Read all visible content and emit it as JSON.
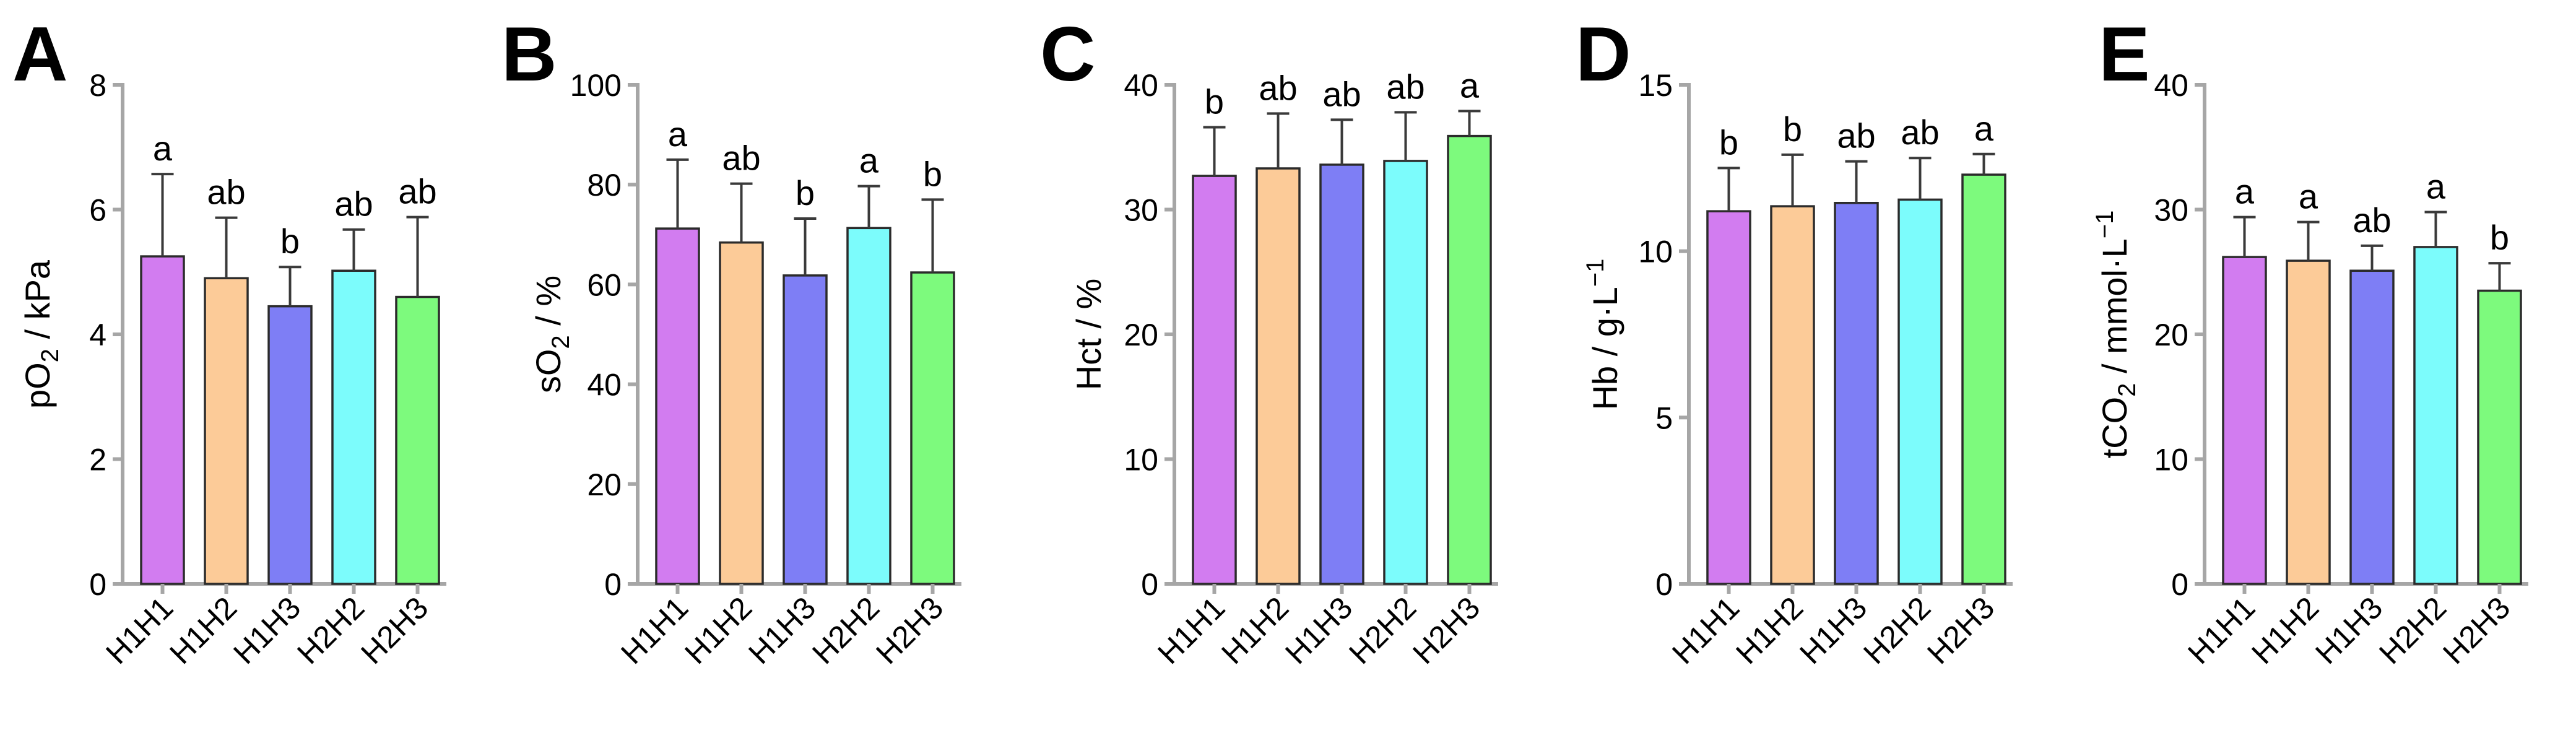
{
  "chart_data": [
    {
      "type": "bar",
      "panel": "A",
      "ylabel": "pO",
      "ylabel_sub": "2",
      "ylabel_tail": " / kPa",
      "ylim": [
        0,
        8
      ],
      "yticks": [
        0,
        2,
        4,
        6,
        8
      ],
      "ytick_labels": [
        "0",
        "2",
        "4",
        "6",
        "8"
      ],
      "categories": [
        "H1H1",
        "H1H2",
        "H1H3",
        "H2H2",
        "H2H3"
      ],
      "values": [
        5.25,
        4.9,
        4.45,
        5.02,
        4.6
      ],
      "errors": [
        1.32,
        0.97,
        0.63,
        0.66,
        1.28
      ],
      "letters": [
        "a",
        "ab",
        "b",
        "ab",
        "ab"
      ],
      "colors": [
        "#d27cf0",
        "#fccb98",
        "#7e7ef5",
        "#7cfcfc",
        "#7dfa7d"
      ]
    },
    {
      "type": "bar",
      "panel": "B",
      "ylabel": "sO",
      "ylabel_sub": "2",
      "ylabel_tail": " / %",
      "ylim": [
        0,
        100
      ],
      "yticks": [
        0,
        20,
        40,
        60,
        80,
        100
      ],
      "ytick_labels": [
        "0",
        "20",
        "40",
        "60",
        "80",
        "100"
      ],
      "categories": [
        "H1H1",
        "H1H2",
        "H1H3",
        "H2H2",
        "H2H3"
      ],
      "values": [
        71.2,
        68.4,
        61.8,
        71.3,
        62.4
      ],
      "errors": [
        13.8,
        11.8,
        11.4,
        8.4,
        14.6
      ],
      "letters": [
        "a",
        "ab",
        "b",
        "a",
        "b"
      ],
      "colors": [
        "#d27cf0",
        "#fccb98",
        "#7e7ef5",
        "#7cfcfc",
        "#7dfa7d"
      ]
    },
    {
      "type": "bar",
      "panel": "C",
      "ylabel": "Hct / %",
      "ylabel_sub": "",
      "ylabel_tail": "",
      "ylim": [
        0,
        40
      ],
      "yticks": [
        0,
        10,
        20,
        30,
        40
      ],
      "ytick_labels": [
        "0",
        "10",
        "20",
        "30",
        "40"
      ],
      "categories": [
        "H1H1",
        "H1H2",
        "H1H3",
        "H2H2",
        "H2H3"
      ],
      "values": [
        32.7,
        33.3,
        33.6,
        33.9,
        35.9
      ],
      "errors": [
        3.9,
        4.4,
        3.6,
        3.9,
        2.0
      ],
      "letters": [
        "b",
        "ab",
        "ab",
        "ab",
        "a"
      ],
      "colors": [
        "#d27cf0",
        "#fccb98",
        "#7e7ef5",
        "#7cfcfc",
        "#7dfa7d"
      ]
    },
    {
      "type": "bar",
      "panel": "D",
      "ylabel": "Hb / g·L",
      "ylabel_sub": "",
      "ylabel_tail": "",
      "ylabel_sup": "−1",
      "ylim": [
        0,
        15
      ],
      "yticks": [
        0,
        5,
        10,
        15
      ],
      "ytick_labels": [
        "0",
        "5",
        "10",
        "15"
      ],
      "categories": [
        "H1H1",
        "H1H2",
        "H1H3",
        "H2H2",
        "H2H3"
      ],
      "values": [
        11.2,
        11.35,
        11.45,
        11.55,
        12.3
      ],
      "errors": [
        1.3,
        1.55,
        1.25,
        1.25,
        0.62
      ],
      "letters": [
        "b",
        "b",
        "ab",
        "ab",
        "a"
      ],
      "colors": [
        "#d27cf0",
        "#fccb98",
        "#7e7ef5",
        "#7cfcfc",
        "#7dfa7d"
      ]
    },
    {
      "type": "bar",
      "panel": "E",
      "ylabel": "tCO",
      "ylabel_sub": "2",
      "ylabel_tail": " / mmol·L",
      "ylabel_sup": "−1",
      "ylim": [
        0,
        40
      ],
      "yticks": [
        0,
        10,
        20,
        30,
        40
      ],
      "ytick_labels": [
        "0",
        "10",
        "20",
        "30",
        "40"
      ],
      "categories": [
        "H1H1",
        "H1H2",
        "H1H3",
        "H2H2",
        "H2H3"
      ],
      "values": [
        26.2,
        25.9,
        25.1,
        27.0,
        23.5
      ],
      "errors": [
        3.2,
        3.1,
        2.0,
        2.8,
        2.2
      ],
      "letters": [
        "a",
        "a",
        "ab",
        "a",
        "b"
      ],
      "colors": [
        "#d27cf0",
        "#fccb98",
        "#7e7ef5",
        "#7cfcfc",
        "#7dfa7d"
      ]
    }
  ]
}
